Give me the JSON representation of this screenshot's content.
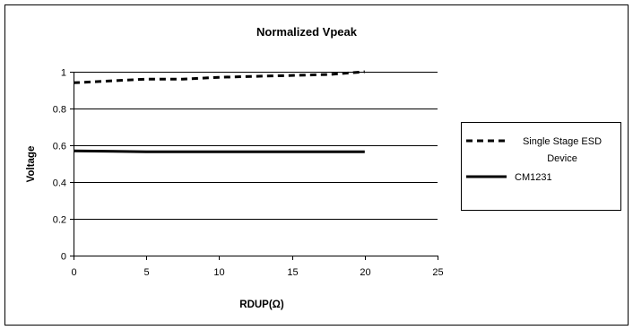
{
  "chart_data": {
    "type": "line",
    "title": "Normalized Vpeak",
    "xlabel": "RDUP(Ω)",
    "ylabel": "Voltage",
    "xlim": [
      0,
      25
    ],
    "ylim": [
      0,
      1
    ],
    "x_ticks": [
      "0",
      "5",
      "10",
      "15",
      "20",
      "25"
    ],
    "y_ticks": [
      "0",
      "0.2",
      "0.4",
      "0.6",
      "0.8",
      "1"
    ],
    "grid": "horizontal",
    "legend_position": "right",
    "series": [
      {
        "name": "Single Stage ESD Device",
        "style": "dashed",
        "color": "#000000",
        "x": [
          0,
          2.5,
          5,
          7.5,
          10,
          12.5,
          15,
          17.5,
          20
        ],
        "y": [
          0.94,
          0.95,
          0.96,
          0.96,
          0.97,
          0.975,
          0.98,
          0.985,
          1.0
        ]
      },
      {
        "name": "CM1231",
        "style": "solid",
        "color": "#000000",
        "x": [
          0,
          5,
          10,
          15,
          20
        ],
        "y": [
          0.57,
          0.565,
          0.565,
          0.565,
          0.565
        ]
      }
    ]
  },
  "legend": {
    "entry1_line1": "Single Stage ESD",
    "entry1_line2": "Device",
    "entry2": "CM1231"
  }
}
